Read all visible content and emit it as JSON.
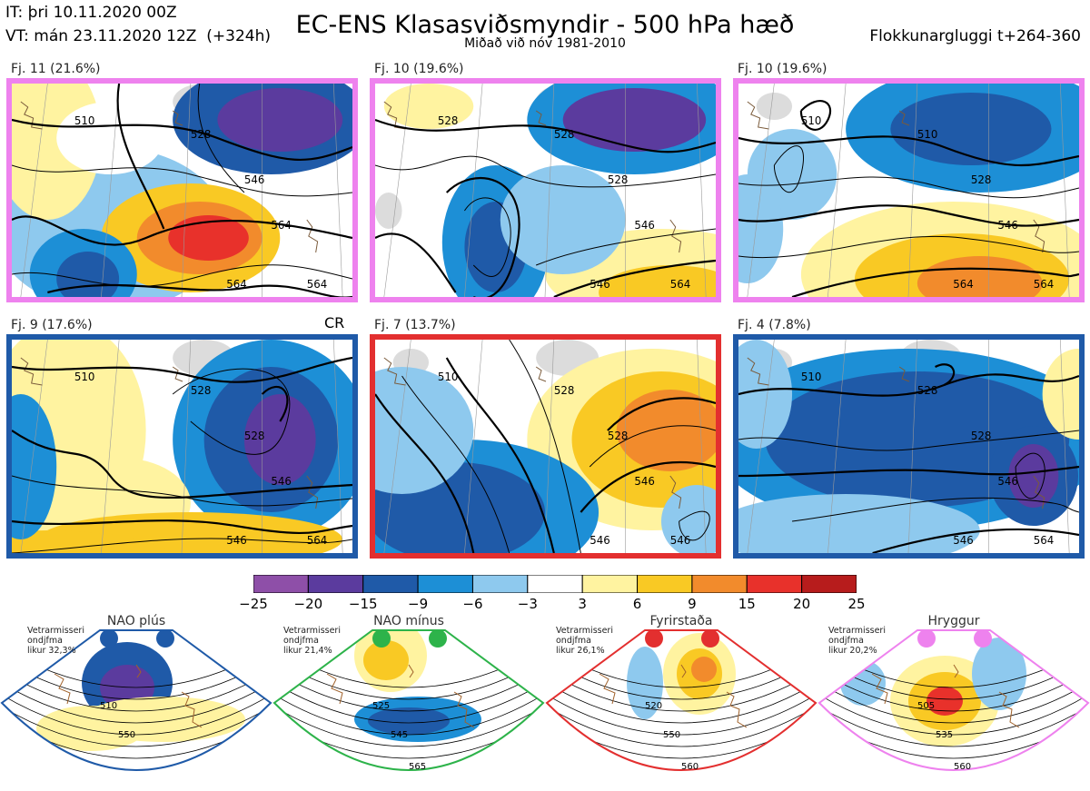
{
  "header": {
    "it": "IT: þri 10.11.2020 00Z",
    "vt": "VT: mán 23.11.2020 12Z",
    "lead": "(+324h)",
    "title": "EC-ENS Klasasviðsmyndir - 500 hPa hæð",
    "subtitle": "Miðað við nóv 1981-2010",
    "window": "Flokkunargluggi t+264-360"
  },
  "panels": [
    {
      "label": "Fj. 11 (21.6%)",
      "border": "#ee82ee",
      "contours": [
        "510",
        "528",
        "546",
        "564",
        "564",
        "564"
      ]
    },
    {
      "label": "Fj. 10 (19.6%)",
      "border": "#ee82ee",
      "contours": [
        "528",
        "528",
        "528",
        "546",
        "546",
        "564"
      ]
    },
    {
      "label": "Fj. 10 (19.6%)",
      "border": "#ee82ee",
      "contours": [
        "510",
        "510",
        "528",
        "546",
        "564",
        "564"
      ]
    },
    {
      "label": "Fj. 9 (17.6%)",
      "border": "#1f5aa8",
      "contours": [
        "510",
        "528",
        "528",
        "546",
        "546",
        "564"
      ]
    },
    {
      "label": "Fj. 7 (13.7%)",
      "border": "#e32f2f",
      "contours": [
        "510",
        "528",
        "528",
        "546",
        "546",
        "546"
      ]
    },
    {
      "label": "Fj. 4 (7.8%)",
      "border": "#1f5aa8",
      "contours": [
        "510",
        "528",
        "528",
        "546",
        "546",
        "564"
      ]
    }
  ],
  "cr_label": "CR",
  "colorbar": {
    "ticks": [
      "−25",
      "−20",
      "−15",
      "−9",
      "−6",
      "−3",
      "3",
      "6",
      "9",
      "15",
      "20",
      "25"
    ],
    "colors": [
      "#8e4fa8",
      "#5b3b9e",
      "#1f5aa8",
      "#1d8fd6",
      "#8ec9ee",
      "#ffffff",
      "#fff3a0",
      "#f9c924",
      "#f28b2c",
      "#e8312b",
      "#b71c1c"
    ]
  },
  "regimes": [
    {
      "name": "NAO plús",
      "note": "Vetrarmisseri\nondjfma\nlikur 32,3%",
      "color": "#1f5aa8",
      "contours": [
        "510",
        "550"
      ]
    },
    {
      "name": "NAO mínus",
      "note": "Vetrarmisseri\nondjfma\nlikur 21,4%",
      "color": "#2db34a",
      "contours": [
        "525",
        "545",
        "565"
      ]
    },
    {
      "name": "Fyrirstaða",
      "note": "Vetrarmisseri\nondjfma\nlikur 26,1%",
      "color": "#e32f2f",
      "contours": [
        "520",
        "550",
        "560"
      ]
    },
    {
      "name": "Hryggur",
      "note": "Vetrarmisseri\nondjfma\nlikur 20,2%",
      "color": "#ee82ee",
      "contours": [
        "505",
        "535",
        "560"
      ]
    }
  ]
}
